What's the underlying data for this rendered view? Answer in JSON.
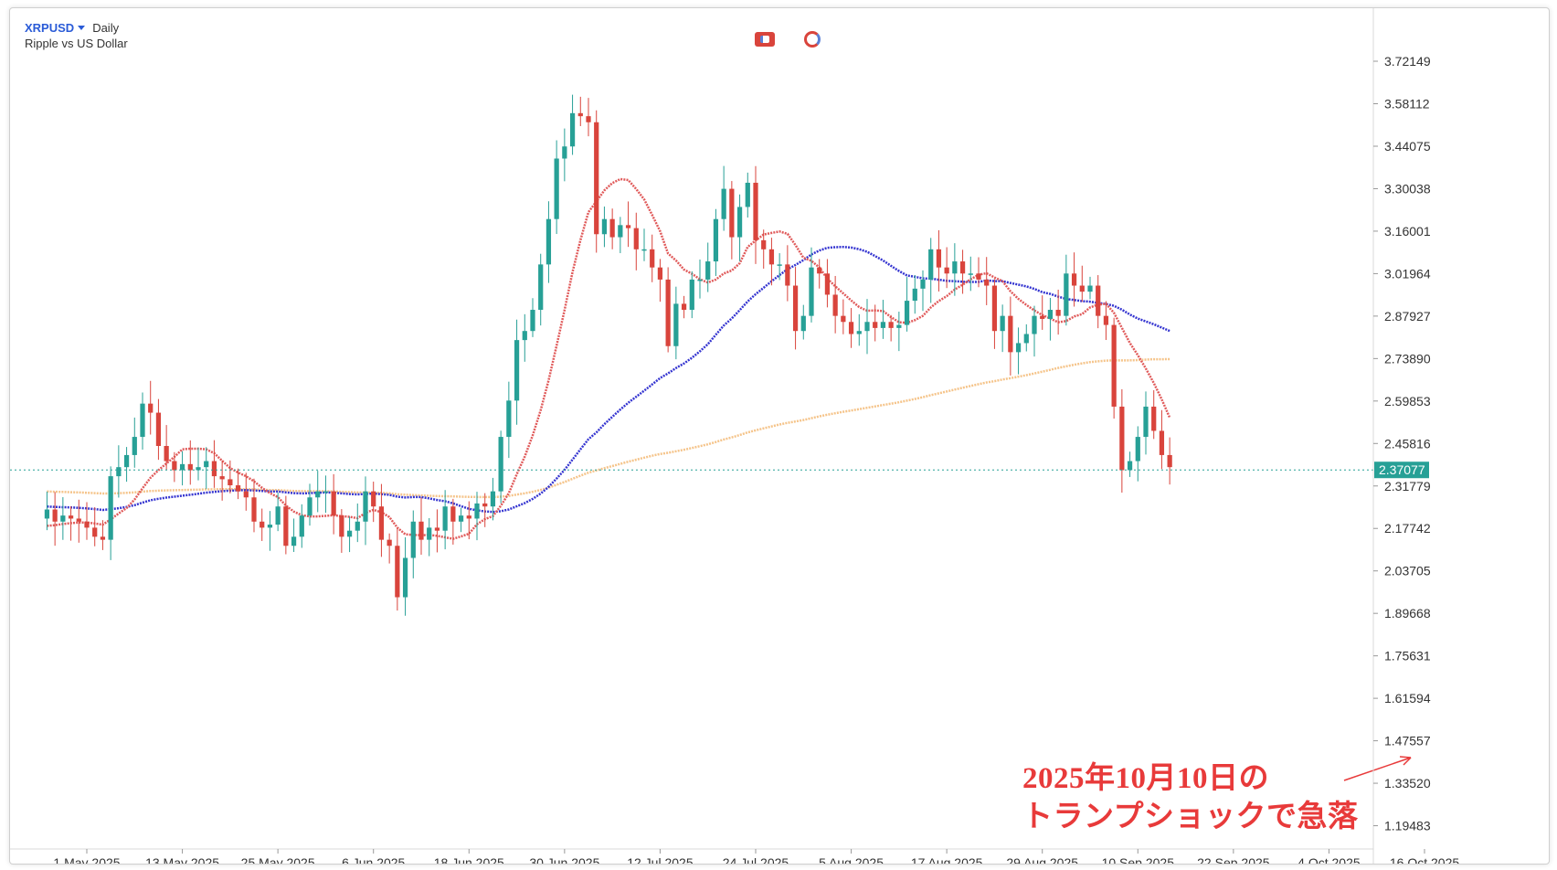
{
  "header": {
    "symbol": "XRPUSD",
    "timeframe": "Daily",
    "description": "Ripple vs US Dollar"
  },
  "annotation": {
    "line1": "2025年10月10日の",
    "line2": "トランプショックで急落"
  },
  "colors": {
    "bull": "#27a096",
    "bear": "#d9443c",
    "ma_short": "#e05a5a",
    "ma_mid": "#3434d0",
    "ma_long": "#f5c48a",
    "annotation": "#e83a3a",
    "price_label_bg": "#27a096"
  },
  "chart_data": {
    "type": "candlestick",
    "y_ticks": [
      "3.72149",
      "3.58112",
      "3.44075",
      "3.30038",
      "3.16001",
      "3.01964",
      "2.87927",
      "2.73890",
      "2.59853",
      "2.45816",
      "2.31779",
      "2.17742",
      "2.03705",
      "1.89668",
      "1.75631",
      "1.61594",
      "1.47557",
      "1.33520",
      "1.19483"
    ],
    "x_ticks": [
      "1 May 2025",
      "13 May 2025",
      "25 May 2025",
      "6 Jun 2025",
      "18 Jun 2025",
      "30 Jun 2025",
      "12 Jul 2025",
      "24 Jul 2025",
      "5 Aug 2025",
      "17 Aug 2025",
      "29 Aug 2025",
      "10 Sep 2025",
      "22 Sep 2025",
      "4 Oct 2025",
      "16 Oct 2025"
    ],
    "current_price": "2.37077",
    "ylim": [
      1.13,
      3.77
    ],
    "first_date": "2025-04-26",
    "closes": [
      2.24,
      2.2,
      2.22,
      2.21,
      2.2,
      2.18,
      2.15,
      2.14,
      2.35,
      2.38,
      2.42,
      2.48,
      2.59,
      2.56,
      2.45,
      2.4,
      2.37,
      2.39,
      2.37,
      2.38,
      2.4,
      2.35,
      2.34,
      2.32,
      2.3,
      2.28,
      2.2,
      2.18,
      2.19,
      2.25,
      2.12,
      2.15,
      2.22,
      2.28,
      2.3,
      2.3,
      2.22,
      2.15,
      2.17,
      2.2,
      2.3,
      2.25,
      2.14,
      2.12,
      1.95,
      2.08,
      2.2,
      2.14,
      2.18,
      2.17,
      2.25,
      2.2,
      2.22,
      2.21,
      2.26,
      2.25,
      2.3,
      2.48,
      2.6,
      2.8,
      2.83,
      2.9,
      3.05,
      3.2,
      3.4,
      3.44,
      3.55,
      3.54,
      3.52,
      3.15,
      3.2,
      3.14,
      3.18,
      3.17,
      3.1,
      3.1,
      3.04,
      3.0,
      2.78,
      2.92,
      2.9,
      3.0,
      3.0,
      3.06,
      3.2,
      3.3,
      3.14,
      3.24,
      3.32,
      3.13,
      3.1,
      3.05,
      3.05,
      2.98,
      2.83,
      2.88,
      3.04,
      3.02,
      2.95,
      2.88,
      2.86,
      2.82,
      2.83,
      2.86,
      2.84,
      2.86,
      2.84,
      2.85,
      2.93,
      2.97,
      3.0,
      3.1,
      3.04,
      3.02,
      3.06,
      3.02,
      3.02,
      3.0,
      2.98,
      2.83,
      2.88,
      2.76,
      2.79,
      2.82,
      2.88,
      2.87,
      2.9,
      2.88,
      3.02,
      2.98,
      2.96,
      2.98,
      2.88,
      2.85,
      2.58,
      2.37,
      2.4,
      2.48,
      2.58,
      2.5,
      2.42,
      2.38
    ]
  }
}
